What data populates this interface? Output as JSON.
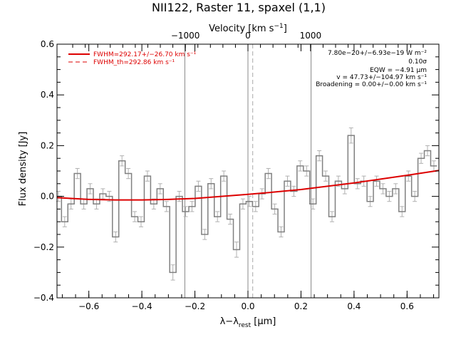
{
  "chart_data": {
    "type": "line",
    "title": "NII122, Raster 11, spaxel (1,1)",
    "xlabel": "λ−λrest [μm]",
    "xlabel_parts": {
      "main": "λ−λ",
      "sub": "rest",
      "unit": " [μm]"
    },
    "ylabel": "Flux density [Jy]",
    "top_axis_label": "Velocity [km s⁻¹]",
    "top_axis_label_parts": {
      "main": "Velocity [km s",
      "sup": "−1",
      "end": "]"
    },
    "xlim": [
      -0.72,
      0.72
    ],
    "ylim": [
      -0.4,
      0.6
    ],
    "x_ticks": [
      -0.6,
      -0.4,
      -0.2,
      0.0,
      0.2,
      0.4,
      0.6
    ],
    "x_tick_labels": [
      "−0.6",
      "−0.4",
      "−0.2",
      "0.0",
      "0.2",
      "0.4",
      "0.6"
    ],
    "y_ticks": [
      -0.4,
      -0.2,
      0.0,
      0.2,
      0.4,
      0.6
    ],
    "y_tick_labels": [
      "−0.4",
      "−0.2",
      "0.0",
      "0.2",
      "0.4",
      "0.6"
    ],
    "top_ticks_km_s": [
      -1000,
      0,
      1000
    ],
    "top_tick_labels": [
      "−1000",
      "0",
      "1000"
    ],
    "top_axis_um_per_kms": 0.000236,
    "vertical_lines": {
      "solid": [
        -0.238,
        0.0,
        0.238
      ],
      "dashed": [
        0.018
      ]
    },
    "legend": {
      "placement": "top-left",
      "entries": [
        {
          "label": "FWHM=292.17+/−26.70 km s⁻¹",
          "style": "solid",
          "color": "#dd0000"
        },
        {
          "label": "FWHM_th=292.86 km s⁻¹",
          "style": "dashed",
          "color": "#dd0000"
        }
      ]
    },
    "annotations": [
      "7.80e−20+/−6.93e−19 W m⁻²",
      "0.10σ",
      "EQW = −4.91 μm",
      "v = 47.73+/−104.97 km s⁻¹",
      "Broadening = 0.00+/−0.00 km s⁻¹"
    ],
    "series": [
      {
        "style": "steps",
        "color": "#808080",
        "x": [
          -0.715,
          -0.691,
          -0.667,
          -0.643,
          -0.619,
          -0.595,
          -0.571,
          -0.547,
          -0.523,
          -0.499,
          -0.475,
          -0.451,
          -0.427,
          -0.403,
          -0.379,
          -0.355,
          -0.331,
          -0.307,
          -0.283,
          -0.259,
          -0.235,
          -0.211,
          -0.187,
          -0.163,
          -0.139,
          -0.115,
          -0.091,
          -0.067,
          -0.043,
          -0.019,
          0.005,
          0.029,
          0.053,
          0.077,
          0.101,
          0.125,
          0.149,
          0.173,
          0.197,
          0.221,
          0.245,
          0.269,
          0.293,
          0.317,
          0.341,
          0.365,
          0.389,
          0.413,
          0.437,
          0.461,
          0.485,
          0.509,
          0.533,
          0.557,
          0.581,
          0.605,
          0.629,
          0.653,
          0.677,
          0.701
        ],
        "y": [
          0.0,
          -0.1,
          -0.03,
          0.09,
          -0.03,
          0.03,
          -0.03,
          0.01,
          0.0,
          -0.16,
          0.14,
          0.09,
          -0.08,
          -0.1,
          0.08,
          -0.03,
          0.03,
          -0.04,
          -0.3,
          0.0,
          -0.06,
          -0.04,
          0.04,
          -0.15,
          0.05,
          -0.08,
          0.08,
          -0.09,
          -0.21,
          -0.03,
          -0.02,
          -0.04,
          0.01,
          0.09,
          -0.05,
          -0.14,
          0.06,
          0.02,
          0.12,
          0.1,
          -0.03,
          0.16,
          0.08,
          -0.08,
          0.06,
          0.03,
          0.24,
          0.05,
          0.06,
          -0.02,
          0.06,
          0.03,
          0.0,
          0.03,
          -0.06,
          0.08,
          0.0,
          0.15,
          0.18,
          0.12
        ],
        "err": [
          0.02,
          0.02,
          0.02,
          0.02,
          0.02,
          0.02,
          0.02,
          0.02,
          0.02,
          0.02,
          0.02,
          0.02,
          0.02,
          0.02,
          0.02,
          0.02,
          0.02,
          0.02,
          0.03,
          0.02,
          0.02,
          0.02,
          0.02,
          0.02,
          0.02,
          0.02,
          0.02,
          0.02,
          0.03,
          0.02,
          0.02,
          0.02,
          0.02,
          0.02,
          0.02,
          0.02,
          0.02,
          0.02,
          0.02,
          0.02,
          0.02,
          0.02,
          0.02,
          0.02,
          0.02,
          0.02,
          0.03,
          0.02,
          0.02,
          0.02,
          0.02,
          0.02,
          0.02,
          0.02,
          0.02,
          0.02,
          0.02,
          0.02,
          0.02,
          0.02
        ]
      },
      {
        "style": "fit",
        "color": "#dd0000",
        "x": [
          -0.72,
          -0.6,
          -0.5,
          -0.4,
          -0.3,
          -0.2,
          -0.1,
          0.0,
          0.1,
          0.2,
          0.3,
          0.4,
          0.5,
          0.6,
          0.72
        ],
        "y": [
          -0.005,
          -0.012,
          -0.014,
          -0.014,
          -0.012,
          -0.008,
          0.0,
          0.008,
          0.017,
          0.027,
          0.04,
          0.053,
          0.068,
          0.083,
          0.102
        ]
      }
    ]
  }
}
